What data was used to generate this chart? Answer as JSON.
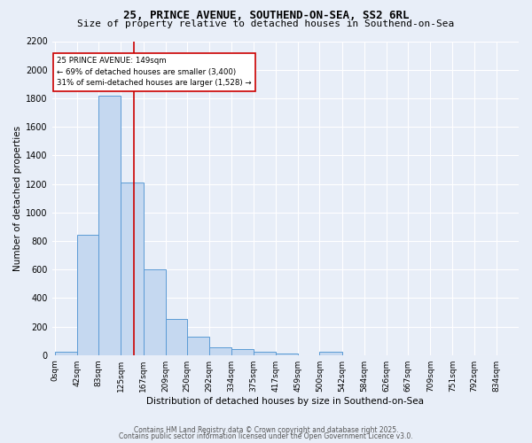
{
  "title_line1": "25, PRINCE AVENUE, SOUTHEND-ON-SEA, SS2 6RL",
  "title_line2": "Size of property relative to detached houses in Southend-on-Sea",
  "xlabel": "Distribution of detached houses by size in Southend-on-Sea",
  "ylabel": "Number of detached properties",
  "bin_labels": [
    "0sqm",
    "42sqm",
    "83sqm",
    "125sqm",
    "167sqm",
    "209sqm",
    "250sqm",
    "292sqm",
    "334sqm",
    "375sqm",
    "417sqm",
    "459sqm",
    "500sqm",
    "542sqm",
    "584sqm",
    "626sqm",
    "667sqm",
    "709sqm",
    "751sqm",
    "792sqm",
    "834sqm"
  ],
  "bin_edges": [
    0,
    42,
    83,
    125,
    167,
    209,
    250,
    292,
    334,
    375,
    417,
    459,
    500,
    542,
    584,
    626,
    667,
    709,
    751,
    792,
    834
  ],
  "bar_values": [
    20,
    840,
    1820,
    1210,
    600,
    255,
    130,
    53,
    40,
    25,
    10,
    0,
    20,
    0,
    0,
    0,
    0,
    0,
    0,
    0
  ],
  "bar_color": "#c5d8f0",
  "bar_edge_color": "#5b9bd5",
  "ylim": [
    0,
    2200
  ],
  "yticks": [
    0,
    200,
    400,
    600,
    800,
    1000,
    1200,
    1400,
    1600,
    1800,
    2000,
    2200
  ],
  "property_line_x": 149,
  "annotation_text": "25 PRINCE AVENUE: 149sqm\n← 69% of detached houses are smaller (3,400)\n31% of semi-detached houses are larger (1,528) →",
  "annotation_box_color": "#ffffff",
  "annotation_box_edge_color": "#cc0000",
  "vline_color": "#cc0000",
  "footer_line1": "Contains HM Land Registry data © Crown copyright and database right 2025.",
  "footer_line2": "Contains public sector information licensed under the Open Government Licence v3.0.",
  "background_color": "#e8eef8",
  "grid_color": "#ffffff",
  "title_fontsize": 9,
  "subtitle_fontsize": 8,
  "axis_label_fontsize": 7.5,
  "tick_fontsize": 6.5,
  "footer_fontsize": 5.5
}
